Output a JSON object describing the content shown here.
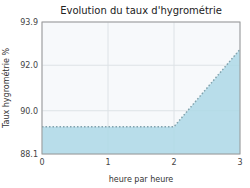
{
  "chart_data": {
    "type": "area",
    "title": "Evolution du taux d'hygrométrie",
    "xlabel": "heure par heure",
    "ylabel": "Taux hygrométrie %",
    "x": [
      0,
      2,
      3
    ],
    "values": [
      89.3,
      89.3,
      92.7
    ],
    "xlim": [
      0,
      3
    ],
    "ylim": [
      88.1,
      93.9
    ],
    "xticks": [
      0,
      1,
      2,
      3
    ],
    "yticks": [
      88.1,
      {
        "value": 90.0,
        "label": "90.0"
      },
      {
        "value": 92.0,
        "label": "92.0"
      },
      93.9
    ],
    "color": "#ADD8E6",
    "line_style": "dotted",
    "grid": true
  }
}
